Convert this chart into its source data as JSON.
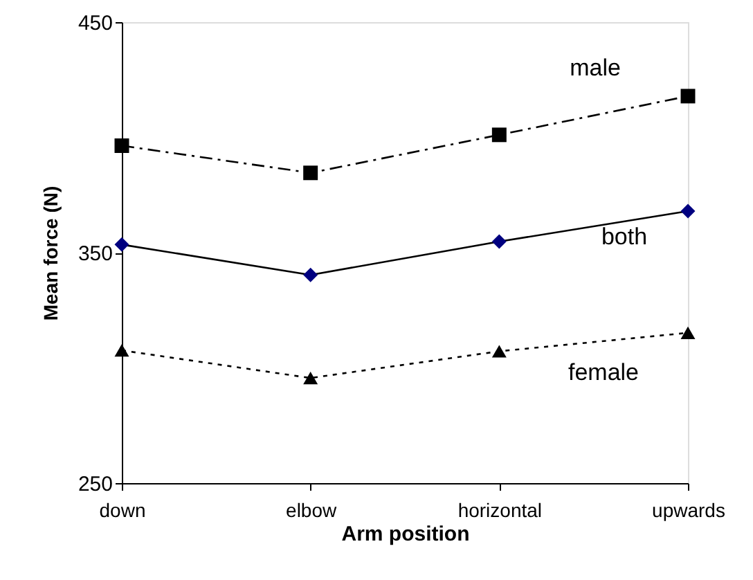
{
  "chart_data": {
    "type": "line",
    "xlabel": "Arm position",
    "ylabel": "Mean force (N)",
    "categories": [
      "down",
      "elbow",
      "horizontal",
      "upwards"
    ],
    "series": [
      {
        "name": "male",
        "color": "#000000",
        "marker": "square",
        "line_style": "dashed",
        "values": [
          396.4,
          384.6,
          401.1,
          417.9
        ]
      },
      {
        "name": "both",
        "color": "#000080",
        "marker": "diamond",
        "line_style": "solid",
        "values": [
          353.5,
          340.3,
          354.8,
          368.0
        ]
      },
      {
        "name": "female",
        "color": "#000000",
        "marker": "triangle",
        "line_style": "dotted",
        "values": [
          307.6,
          295.6,
          307.2,
          315.2
        ]
      }
    ],
    "ylim": [
      250,
      450
    ],
    "yticks": [
      250,
      350,
      450
    ],
    "grid": false
  }
}
